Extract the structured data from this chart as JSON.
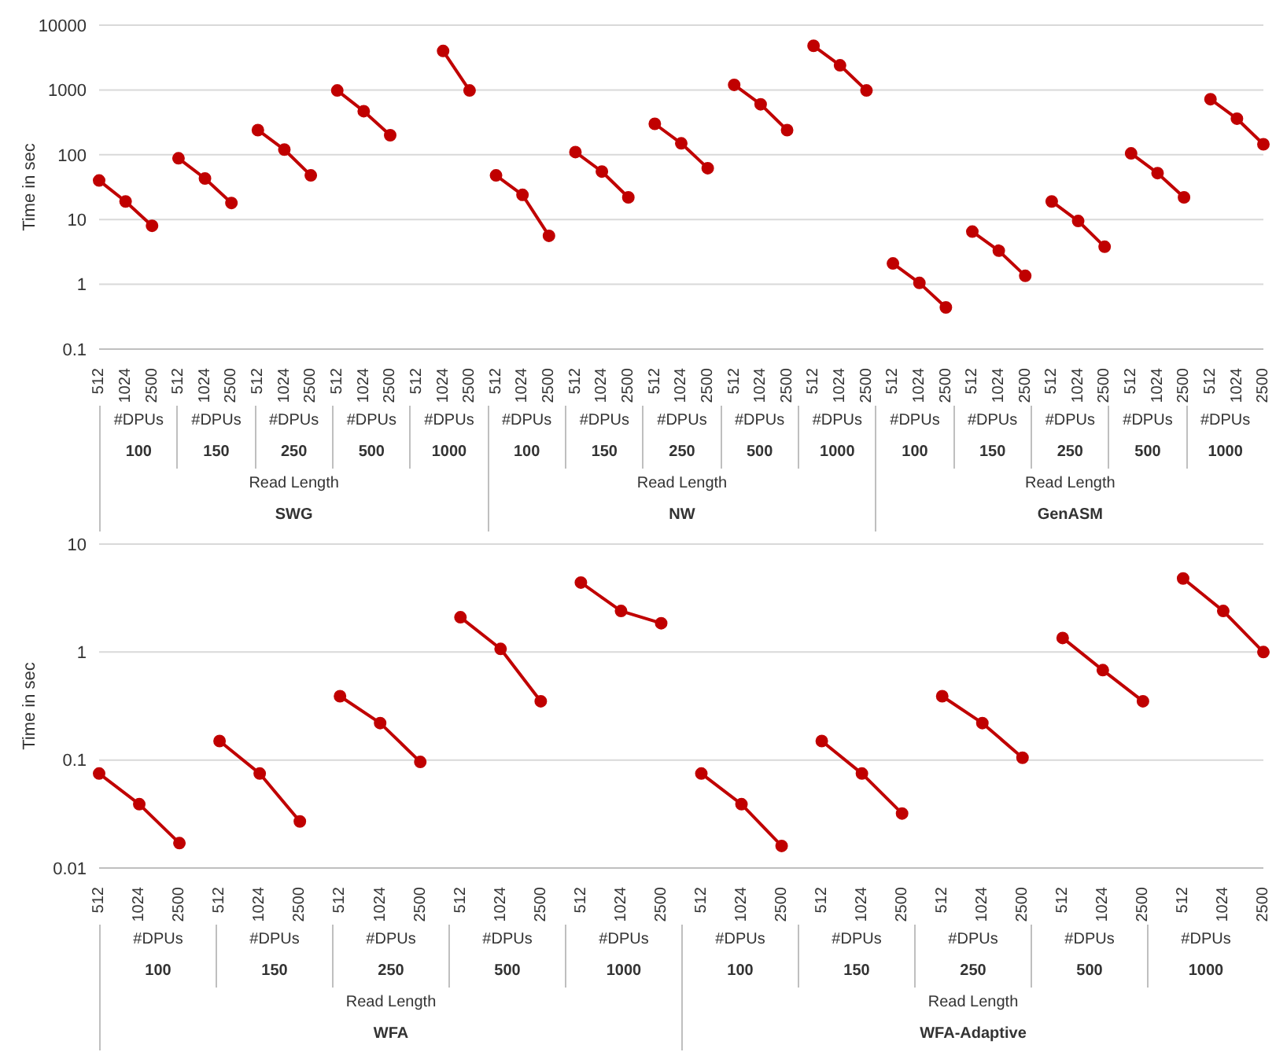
{
  "chart_data": [
    {
      "type": "line",
      "ylabel": "Time in sec",
      "log": true,
      "ylim": [
        0.1,
        10000
      ],
      "yticks": [
        0.1,
        1,
        10,
        100,
        1000,
        10000
      ],
      "grid": "y",
      "marker": "circle",
      "categories": [
        "512",
        "1024",
        "2500",
        "512",
        "1024",
        "2500",
        "512",
        "1024",
        "2500",
        "512",
        "1024",
        "2500",
        "512",
        "1024",
        "2500",
        "512",
        "1024",
        "2500",
        "512",
        "1024",
        "2500",
        "512",
        "1024",
        "2500",
        "512",
        "1024",
        "2500",
        "512",
        "1024",
        "2500",
        "512",
        "1024",
        "2500",
        "512",
        "1024",
        "2500",
        "512",
        "1024",
        "2500",
        "512",
        "1024",
        "2500",
        "512",
        "1024",
        "2500"
      ],
      "annotations": [
        "#DPUs",
        "#DPUs",
        "#DPUs",
        "#DPUs",
        "#DPUs",
        "#DPUs",
        "#DPUs",
        "#DPUs",
        "#DPUs",
        "#DPUs",
        "#DPUs",
        "#DPUs",
        "#DPUs",
        "#DPUs",
        "#DPUs",
        "100",
        "150",
        "250",
        "500",
        "1000",
        "100",
        "150",
        "250",
        "500",
        "1000",
        "100",
        "150",
        "250",
        "500",
        "1000",
        "Read Length",
        "Read Length",
        "Read Length",
        "SWG",
        "NW",
        "GenASM"
      ],
      "series": [
        {
          "color": "#c00000",
          "values": [
            40,
            19,
            8,
            null,
            null,
            null,
            null,
            null,
            null,
            null,
            null,
            null,
            null,
            null,
            null,
            null,
            null,
            null,
            null,
            null,
            null,
            null,
            null,
            null,
            null,
            null,
            null,
            null,
            null,
            null,
            null,
            null,
            null,
            null,
            null,
            null,
            null,
            null,
            null,
            null,
            null,
            null,
            null,
            null,
            null
          ]
        },
        {
          "color": "#c00000",
          "values": [
            null,
            null,
            null,
            88,
            43,
            18,
            null,
            null,
            null,
            null,
            null,
            null,
            null,
            null,
            null,
            null,
            null,
            null,
            null,
            null,
            null,
            null,
            null,
            null,
            null,
            null,
            null,
            null,
            null,
            null,
            null,
            null,
            null,
            null,
            null,
            null,
            null,
            null,
            null,
            null,
            null,
            null,
            null,
            null,
            null
          ]
        },
        {
          "color": "#c00000",
          "values": [
            null,
            null,
            null,
            null,
            null,
            null,
            240,
            120,
            48,
            null,
            null,
            null,
            null,
            null,
            null,
            null,
            null,
            null,
            null,
            null,
            null,
            null,
            null,
            null,
            null,
            null,
            null,
            null,
            null,
            null,
            null,
            null,
            null,
            null,
            null,
            null,
            null,
            null,
            null,
            null,
            null,
            null,
            null,
            null,
            null
          ]
        },
        {
          "color": "#c00000",
          "values": [
            null,
            null,
            null,
            null,
            null,
            null,
            null,
            null,
            null,
            980,
            470,
            200,
            null,
            null,
            null,
            null,
            null,
            null,
            null,
            null,
            null,
            null,
            null,
            null,
            null,
            null,
            null,
            null,
            null,
            null,
            null,
            null,
            null,
            null,
            null,
            null,
            null,
            null,
            null,
            null,
            null,
            null,
            null,
            null,
            null
          ]
        },
        {
          "color": "#c00000",
          "values": [
            null,
            null,
            null,
            null,
            null,
            null,
            null,
            null,
            null,
            null,
            null,
            null,
            null,
            4000,
            980,
            null,
            null,
            null,
            null,
            null,
            null,
            null,
            null,
            null,
            null,
            null,
            null,
            null,
            null,
            null,
            null,
            null,
            null,
            null,
            null,
            null,
            null,
            null,
            null,
            null,
            null,
            null,
            null,
            null,
            null
          ]
        },
        {
          "color": "#c00000",
          "values": [
            null,
            null,
            null,
            null,
            null,
            null,
            null,
            null,
            null,
            null,
            null,
            null,
            null,
            null,
            null,
            48,
            24,
            5.6,
            null,
            null,
            null,
            null,
            null,
            null,
            null,
            null,
            null,
            null,
            null,
            null,
            null,
            null,
            null,
            null,
            null,
            null,
            null,
            null,
            null,
            null,
            null,
            null,
            null,
            null,
            null
          ]
        },
        {
          "color": "#c00000",
          "values": [
            null,
            null,
            null,
            null,
            null,
            null,
            null,
            null,
            null,
            null,
            null,
            null,
            null,
            null,
            null,
            null,
            null,
            null,
            110,
            55,
            22,
            null,
            null,
            null,
            null,
            null,
            null,
            null,
            null,
            null,
            null,
            null,
            null,
            null,
            null,
            null,
            null,
            null,
            null,
            null,
            null,
            null,
            null,
            null,
            null
          ]
        },
        {
          "color": "#c00000",
          "values": [
            null,
            null,
            null,
            null,
            null,
            null,
            null,
            null,
            null,
            null,
            null,
            null,
            null,
            null,
            null,
            null,
            null,
            null,
            null,
            null,
            null,
            300,
            150,
            62,
            null,
            null,
            null,
            null,
            null,
            null,
            null,
            null,
            null,
            null,
            null,
            null,
            null,
            null,
            null,
            null,
            null,
            null,
            null,
            null,
            null
          ]
        },
        {
          "color": "#c00000",
          "values": [
            null,
            null,
            null,
            null,
            null,
            null,
            null,
            null,
            null,
            null,
            null,
            null,
            null,
            null,
            null,
            null,
            null,
            null,
            null,
            null,
            null,
            null,
            null,
            null,
            1200,
            600,
            240,
            null,
            null,
            null,
            null,
            null,
            null,
            null,
            null,
            null,
            null,
            null,
            null,
            null,
            null,
            null,
            null,
            null,
            null
          ]
        },
        {
          "color": "#c00000",
          "values": [
            null,
            null,
            null,
            null,
            null,
            null,
            null,
            null,
            null,
            null,
            null,
            null,
            null,
            null,
            null,
            null,
            null,
            null,
            null,
            null,
            null,
            null,
            null,
            null,
            null,
            null,
            null,
            4800,
            2400,
            980,
            null,
            null,
            null,
            null,
            null,
            null,
            null,
            null,
            null,
            null,
            null,
            null,
            null,
            null,
            null
          ]
        },
        {
          "color": "#c00000",
          "values": [
            null,
            null,
            null,
            null,
            null,
            null,
            null,
            null,
            null,
            null,
            null,
            null,
            null,
            null,
            null,
            null,
            null,
            null,
            null,
            null,
            null,
            null,
            null,
            null,
            null,
            null,
            null,
            null,
            null,
            null,
            2.1,
            1.05,
            0.44,
            null,
            null,
            null,
            null,
            null,
            null,
            null,
            null,
            null,
            null,
            null,
            null
          ]
        },
        {
          "color": "#c00000",
          "values": [
            null,
            null,
            null,
            null,
            null,
            null,
            null,
            null,
            null,
            null,
            null,
            null,
            null,
            null,
            null,
            null,
            null,
            null,
            null,
            null,
            null,
            null,
            null,
            null,
            null,
            null,
            null,
            null,
            null,
            null,
            null,
            null,
            null,
            6.5,
            3.3,
            1.35,
            null,
            null,
            null,
            null,
            null,
            null,
            null,
            null,
            null
          ]
        },
        {
          "color": "#c00000",
          "values": [
            null,
            null,
            null,
            null,
            null,
            null,
            null,
            null,
            null,
            null,
            null,
            null,
            null,
            null,
            null,
            null,
            null,
            null,
            null,
            null,
            null,
            null,
            null,
            null,
            null,
            null,
            null,
            null,
            null,
            null,
            null,
            null,
            null,
            null,
            null,
            null,
            19,
            9.5,
            3.8,
            null,
            null,
            null,
            null,
            null,
            null
          ]
        },
        {
          "color": "#c00000",
          "values": [
            null,
            null,
            null,
            null,
            null,
            null,
            null,
            null,
            null,
            null,
            null,
            null,
            null,
            null,
            null,
            null,
            null,
            null,
            null,
            null,
            null,
            null,
            null,
            null,
            null,
            null,
            null,
            null,
            null,
            null,
            null,
            null,
            null,
            null,
            null,
            null,
            null,
            null,
            null,
            105,
            52,
            22,
            null,
            null,
            null
          ]
        },
        {
          "color": "#c00000",
          "values": [
            null,
            null,
            null,
            null,
            null,
            null,
            null,
            null,
            null,
            null,
            null,
            null,
            null,
            null,
            null,
            null,
            null,
            null,
            null,
            null,
            null,
            null,
            null,
            null,
            null,
            null,
            null,
            null,
            null,
            null,
            null,
            null,
            null,
            null,
            null,
            null,
            null,
            null,
            null,
            null,
            null,
            null,
            720,
            360,
            145
          ]
        }
      ]
    },
    {
      "type": "line",
      "ylabel": "Time in sec",
      "log": true,
      "ylim": [
        0.01,
        10
      ],
      "yticks": [
        0.01,
        0.1,
        1,
        10
      ],
      "grid": "y",
      "marker": "circle",
      "categories": [
        "512",
        "1024",
        "2500",
        "512",
        "1024",
        "2500",
        "512",
        "1024",
        "2500",
        "512",
        "1024",
        "2500",
        "512",
        "1024",
        "2500",
        "512",
        "1024",
        "2500",
        "512",
        "1024",
        "2500",
        "512",
        "1024",
        "2500",
        "512",
        "1024",
        "2500",
        "512",
        "1024",
        "2500"
      ],
      "annotations": [
        "#DPUs",
        "#DPUs",
        "#DPUs",
        "#DPUs",
        "#DPUs",
        "#DPUs",
        "#DPUs",
        "#DPUs",
        "#DPUs",
        "#DPUs",
        "100",
        "150",
        "250",
        "500",
        "1000",
        "100",
        "150",
        "250",
        "500",
        "1000",
        "Read Length",
        "Read Length",
        "WFA",
        "WFA-Adaptive"
      ],
      "series": [
        {
          "color": "#c00000",
          "values": [
            0.075,
            0.039,
            0.017,
            null,
            null,
            null,
            null,
            null,
            null,
            null,
            null,
            null,
            null,
            null,
            null,
            null,
            null,
            null,
            null,
            null,
            null,
            null,
            null,
            null,
            null,
            null,
            null,
            null,
            null,
            null
          ]
        },
        {
          "color": "#c00000",
          "values": [
            null,
            null,
            null,
            0.15,
            0.075,
            0.027,
            null,
            null,
            null,
            null,
            null,
            null,
            null,
            null,
            null,
            null,
            null,
            null,
            null,
            null,
            null,
            null,
            null,
            null,
            null,
            null,
            null,
            null,
            null,
            null
          ]
        },
        {
          "color": "#c00000",
          "values": [
            null,
            null,
            null,
            null,
            null,
            null,
            0.39,
            0.22,
            0.096,
            null,
            null,
            null,
            null,
            null,
            null,
            null,
            null,
            null,
            null,
            null,
            null,
            null,
            null,
            null,
            null,
            null,
            null,
            null,
            null,
            null
          ]
        },
        {
          "color": "#c00000",
          "values": [
            null,
            null,
            null,
            null,
            null,
            null,
            null,
            null,
            null,
            2.1,
            1.07,
            0.35,
            null,
            null,
            null,
            null,
            null,
            null,
            null,
            null,
            null,
            null,
            null,
            null,
            null,
            null,
            null,
            null,
            null,
            null
          ]
        },
        {
          "color": "#c00000",
          "values": [
            null,
            null,
            null,
            null,
            null,
            null,
            null,
            null,
            null,
            null,
            null,
            null,
            4.4,
            2.4,
            1.85,
            null,
            null,
            null,
            null,
            null,
            null,
            null,
            null,
            null,
            null,
            null,
            null,
            null,
            null,
            null
          ]
        },
        {
          "color": "#c00000",
          "values": [
            null,
            null,
            null,
            null,
            null,
            null,
            null,
            null,
            null,
            null,
            null,
            null,
            null,
            null,
            null,
            0.075,
            0.039,
            0.016,
            null,
            null,
            null,
            null,
            null,
            null,
            null,
            null,
            null,
            null,
            null,
            null
          ]
        },
        {
          "color": "#c00000",
          "values": [
            null,
            null,
            null,
            null,
            null,
            null,
            null,
            null,
            null,
            null,
            null,
            null,
            null,
            null,
            null,
            null,
            null,
            null,
            0.15,
            0.075,
            0.032,
            null,
            null,
            null,
            null,
            null,
            null,
            null,
            null,
            null
          ]
        },
        {
          "color": "#c00000",
          "values": [
            null,
            null,
            null,
            null,
            null,
            null,
            null,
            null,
            null,
            null,
            null,
            null,
            null,
            null,
            null,
            null,
            null,
            null,
            null,
            null,
            null,
            0.39,
            0.22,
            0.105,
            null,
            null,
            null,
            null,
            null,
            null
          ]
        },
        {
          "color": "#c00000",
          "values": [
            null,
            null,
            null,
            null,
            null,
            null,
            null,
            null,
            null,
            null,
            null,
            null,
            null,
            null,
            null,
            null,
            null,
            null,
            null,
            null,
            null,
            null,
            null,
            null,
            1.35,
            0.68,
            0.35,
            null,
            null,
            null
          ]
        },
        {
          "color": "#c00000",
          "values": [
            null,
            null,
            null,
            null,
            null,
            null,
            null,
            null,
            null,
            null,
            null,
            null,
            null,
            null,
            null,
            null,
            null,
            null,
            null,
            null,
            null,
            null,
            null,
            null,
            null,
            null,
            null,
            4.8,
            2.4,
            1.0
          ]
        }
      ]
    }
  ]
}
